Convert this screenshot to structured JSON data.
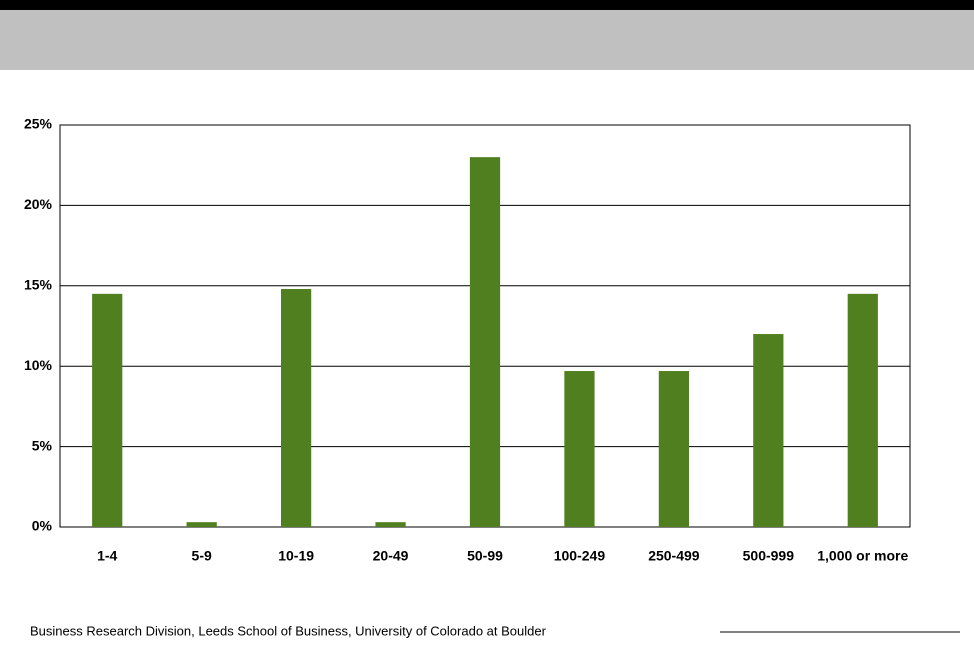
{
  "chart_data": {
    "type": "bar",
    "categories": [
      "1-4",
      "5-9",
      "10-19",
      "20-49",
      "50-99",
      "100-249",
      "250-499",
      "500-999",
      "1,000 or more"
    ],
    "values": [
      14.5,
      0.3,
      14.8,
      0.3,
      23,
      9.7,
      9.7,
      12,
      14.5
    ],
    "color": "#4f7f1f",
    "ylim": [
      0,
      25
    ],
    "yticks": [
      {
        "value": 0,
        "label": "0%"
      },
      {
        "value": 5,
        "label": "5%"
      },
      {
        "value": 10,
        "label": "10%"
      },
      {
        "value": 15,
        "label": "15%"
      },
      {
        "value": 20,
        "label": "20%"
      },
      {
        "value": 25,
        "label": "25%"
      }
    ],
    "grid": true,
    "source": "Business Research Division, Leeds School of Business, University of Colorado at Boulder"
  }
}
